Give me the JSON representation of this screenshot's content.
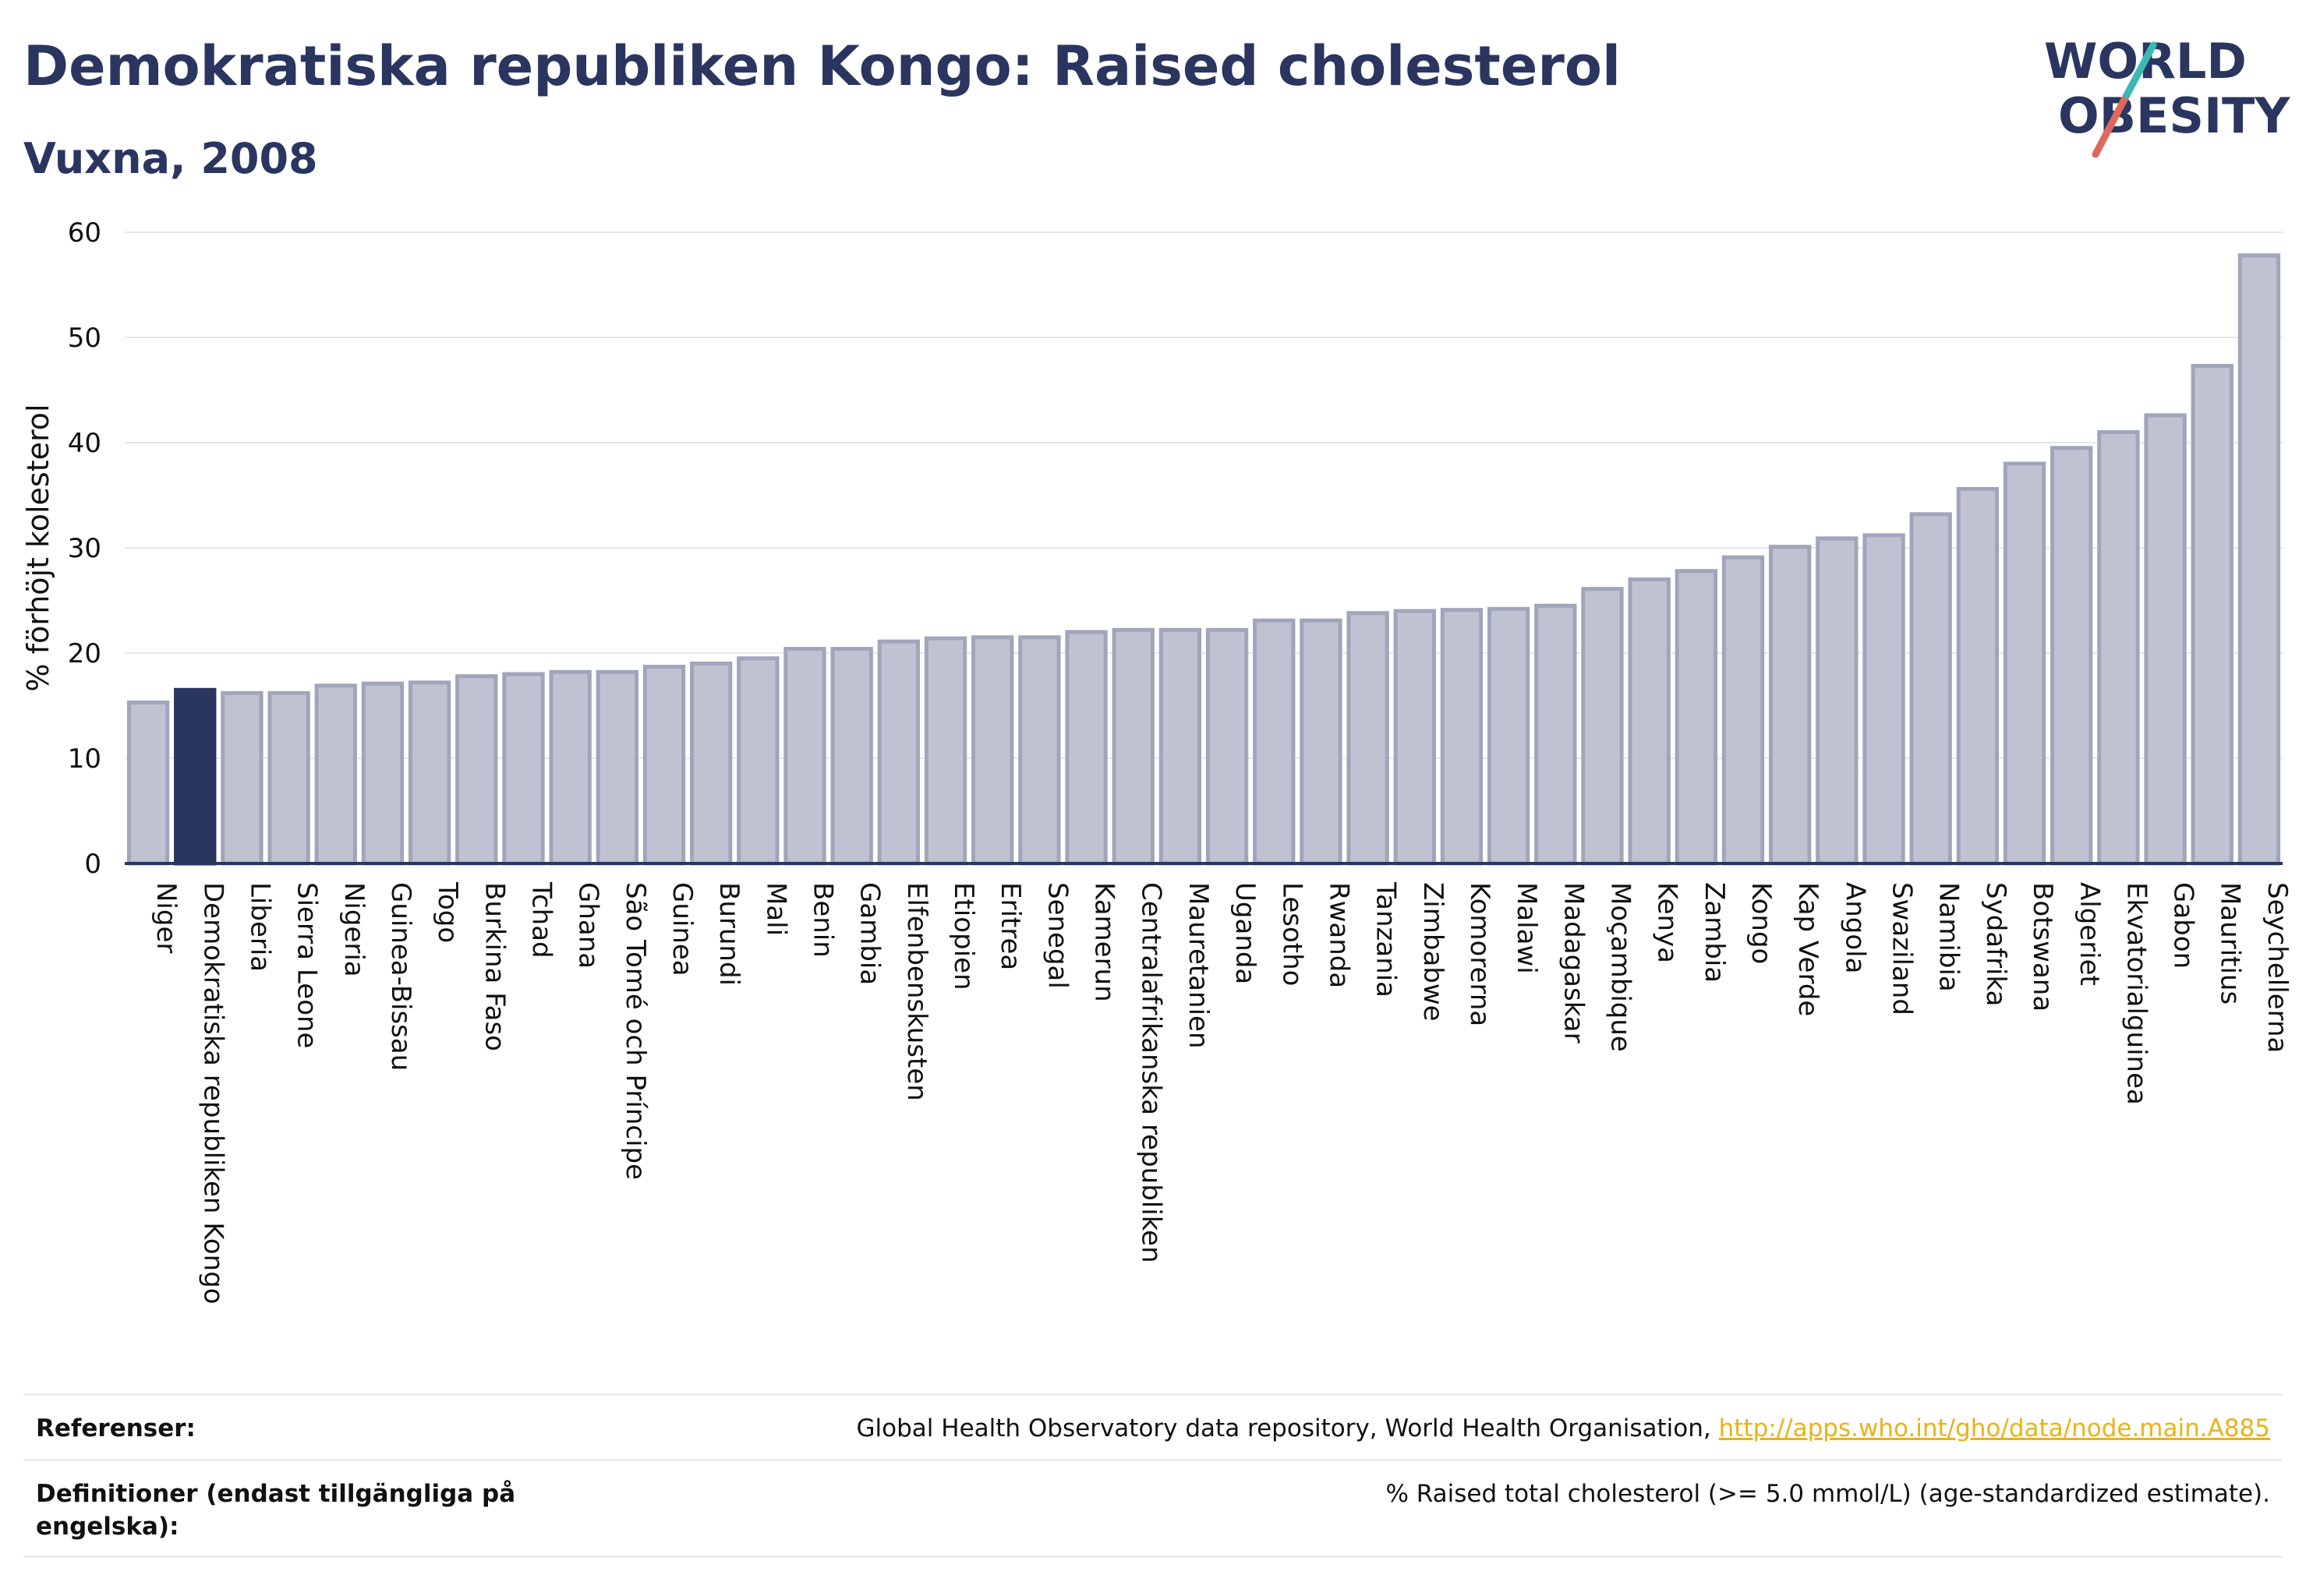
{
  "header": {
    "title": "Demokratiska republiken Kongo: Raised cholesterol",
    "subtitle": "Vuxna, 2008"
  },
  "logo": {
    "line1": "WORLD",
    "line2": "OBESITY"
  },
  "chart_data": {
    "type": "bar",
    "title": "Demokratiska republiken Kongo: Raised cholesterol",
    "subtitle": "Vuxna, 2008",
    "ylabel": "% förhöjt kolesterol",
    "xlabel": "",
    "ylim": [
      0,
      60
    ],
    "yticks": [
      0,
      10,
      20,
      30,
      40,
      50,
      60
    ],
    "grid": true,
    "highlight": "Demokratiska republiken Kongo",
    "colors": {
      "bar": "#bfc2d0",
      "bar_outline": "#a0a5bb",
      "highlight": "#2a3560"
    },
    "categories": [
      "Niger",
      "Demokratiska republiken Kongo",
      "Liberia",
      "Sierra Leone",
      "Nigeria",
      "Guinea-Bissau",
      "Togo",
      "Burkina Faso",
      "Tchad",
      "Ghana",
      "São Tomé och Príncipe",
      "Guinea",
      "Burundi",
      "Mali",
      "Benin",
      "Gambia",
      "Elfenbenskusten",
      "Etiopien",
      "Eritrea",
      "Senegal",
      "Kamerun",
      "Centralafrikanska republiken",
      "Mauretanien",
      "Uganda",
      "Lesotho",
      "Rwanda",
      "Tanzania",
      "Zimbabwe",
      "Komorerna",
      "Malawi",
      "Madagaskar",
      "Moçambique",
      "Kenya",
      "Zambia",
      "Kongo",
      "Kap Verde",
      "Angola",
      "Swaziland",
      "Namibia",
      "Sydafrika",
      "Botswana",
      "Algeriet",
      "Ekvatorialguinea",
      "Gabon",
      "Mauritius",
      "Seychellerna"
    ],
    "values": [
      15.3,
      16.5,
      16.2,
      16.2,
      16.9,
      17.1,
      17.2,
      17.8,
      18.0,
      18.2,
      18.2,
      18.7,
      19.0,
      19.5,
      20.4,
      20.4,
      21.1,
      21.4,
      21.5,
      21.5,
      22.0,
      22.2,
      22.2,
      22.2,
      23.1,
      23.1,
      23.8,
      24.0,
      24.1,
      24.2,
      24.5,
      26.1,
      27.0,
      27.8,
      29.1,
      30.1,
      30.9,
      31.2,
      33.2,
      35.6,
      38.0,
      39.5,
      41.0,
      42.6,
      47.3,
      57.8
    ]
  },
  "footer": {
    "references_label": "Referenser:",
    "references_text": "Global Health Observatory data repository, World Health Organisation, ",
    "references_link": "http://apps.who.int/gho/data/node.main.A885",
    "definitions_label": "Definitioner (endast tillgängliga på engelska):",
    "definitions_text": "% Raised total cholesterol (>= 5.0 mmol/L) (age-standardized estimate)."
  }
}
